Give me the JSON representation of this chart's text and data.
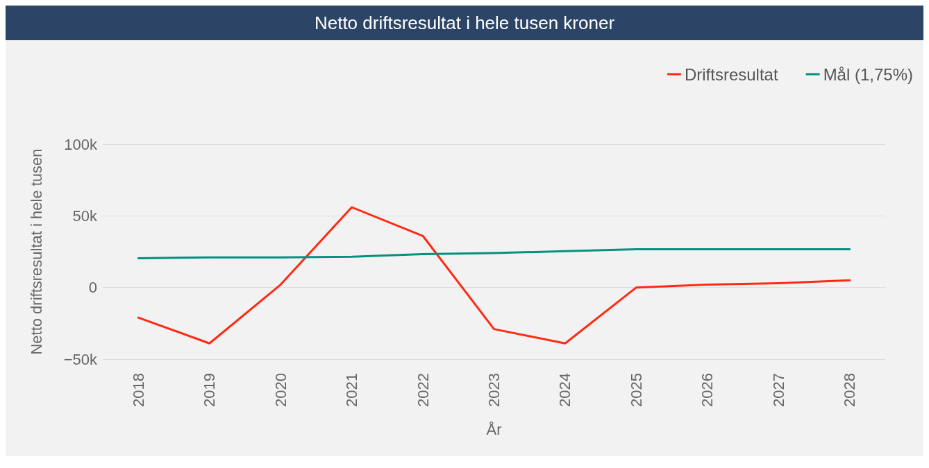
{
  "chart_data": {
    "type": "line",
    "title": "Netto driftsresultat i hele tusen kroner",
    "xlabel": "År",
    "ylabel": "Netto driftsresultat i hele tusen",
    "categories": [
      "2018",
      "2019",
      "2020",
      "2021",
      "2022",
      "2023",
      "2024",
      "2025",
      "2026",
      "2027",
      "2028"
    ],
    "series": [
      {
        "name": "Driftsresultat",
        "color": "#ff2a12",
        "values": [
          -21000,
          -39000,
          2000,
          56000,
          36000,
          -29000,
          -39000,
          0,
          2000,
          3000,
          5000
        ]
      },
      {
        "name": "Mål (1,75%)",
        "color": "#00927d",
        "values": [
          20400,
          21000,
          21000,
          21500,
          23300,
          24000,
          25400,
          26700,
          26700,
          26700,
          26700
        ]
      }
    ],
    "ylim": [
      -50000,
      100000
    ],
    "yticks": [
      {
        "value": -50000,
        "label": "−50k"
      },
      {
        "value": 0,
        "label": "0"
      },
      {
        "value": 50000,
        "label": "50k"
      },
      {
        "value": 100000,
        "label": "100k"
      }
    ],
    "grid": "y",
    "legend": "top right",
    "marker": "none",
    "line_style": "solid"
  }
}
